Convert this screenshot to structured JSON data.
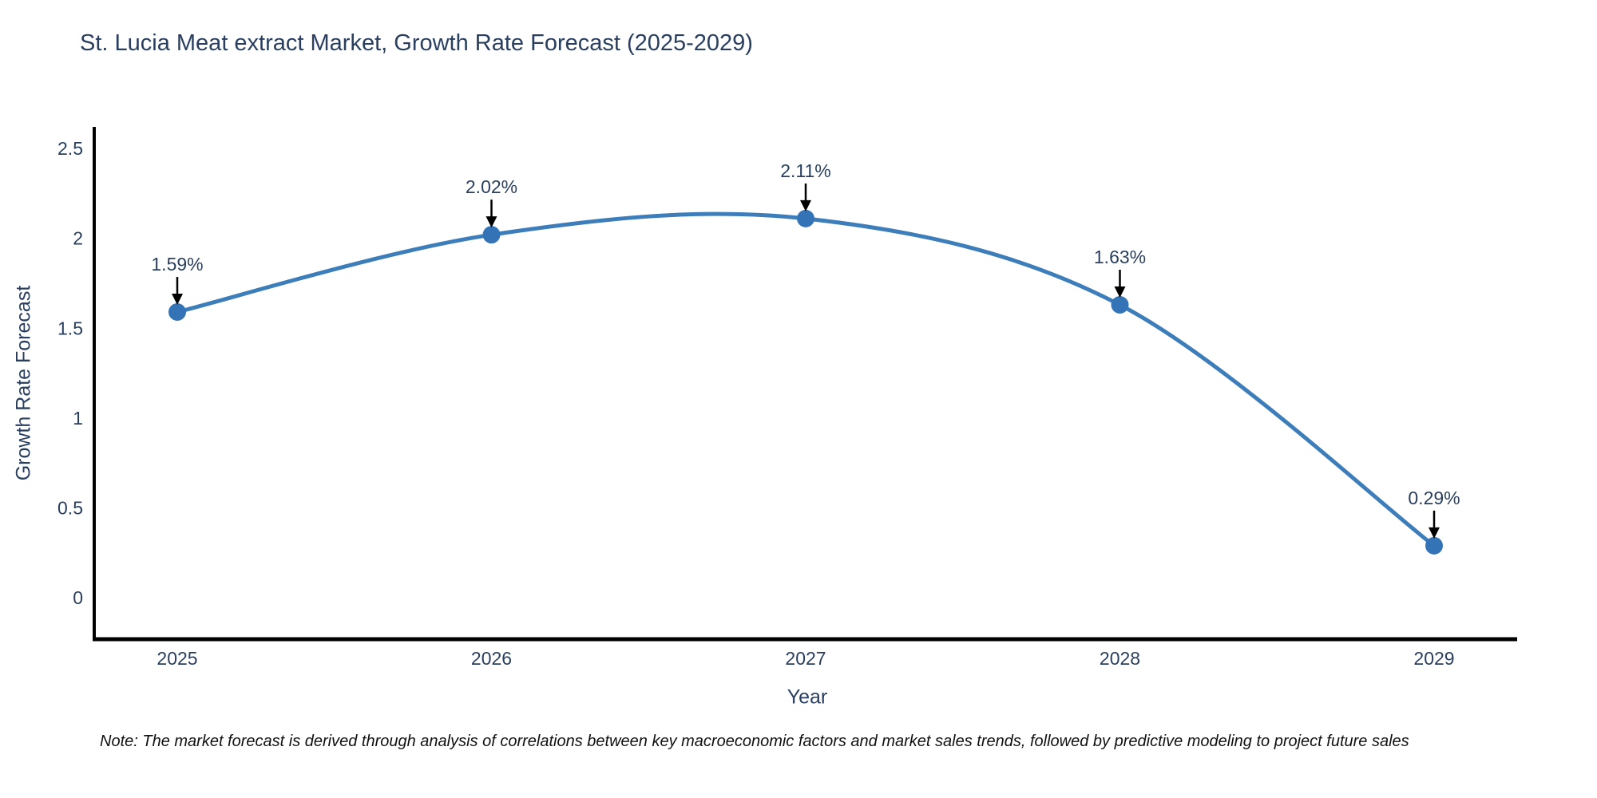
{
  "chart_data": {
    "type": "line",
    "title": "St. Lucia Meat extract Market, Growth Rate Forecast (2025-2029)",
    "xlabel": "Year",
    "ylabel": "Growth Rate Forecast",
    "categories": [
      "2025",
      "2026",
      "2027",
      "2028",
      "2029"
    ],
    "values": [
      1.59,
      2.02,
      2.11,
      1.63,
      0.29
    ],
    "point_labels": [
      "1.59%",
      "2.02%",
      "2.11%",
      "1.63%",
      "0.29%"
    ],
    "yticks": [
      {
        "value": 0,
        "label": "0"
      },
      {
        "value": 0.5,
        "label": "0.5"
      },
      {
        "value": 1,
        "label": "1"
      },
      {
        "value": 1.5,
        "label": "1.5"
      },
      {
        "value": 2,
        "label": "2"
      },
      {
        "value": 2.5,
        "label": "2.5"
      }
    ],
    "ylim": [
      -0.23,
      2.62
    ],
    "line_shape": "spline",
    "grid": false,
    "legend": "none",
    "annotations_have_arrows": true,
    "colors": {
      "line": "#3d7eba",
      "marker": "#3474b6",
      "axis": "#000000",
      "text": "#2a3f5f",
      "annotation": "#000000"
    }
  },
  "note": "Note: The market forecast is derived through analysis of correlations between key macroeconomic factors and market sales trends, followed by predictive modeling to project future sales"
}
